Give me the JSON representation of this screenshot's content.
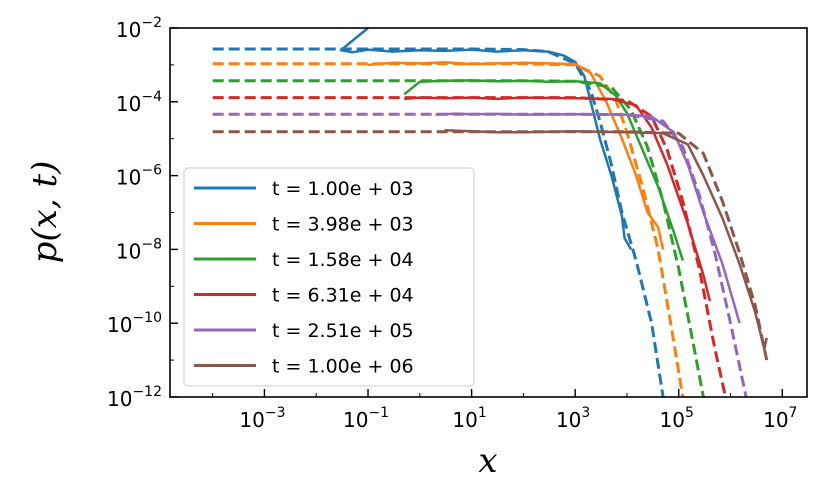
{
  "chart_data": {
    "type": "line",
    "xscale": "log",
    "yscale": "log",
    "xlabel": "x",
    "ylabel": "p(x, t)",
    "xlim": [
      1.5e-05,
      30000000.0
    ],
    "ylim": [
      1e-12,
      0.01
    ],
    "xticks": [
      {
        "base": "10",
        "exp": "−3",
        "value": 0.001
      },
      {
        "base": "10",
        "exp": "−1",
        "value": 0.1
      },
      {
        "base": "10",
        "exp": "1",
        "value": 10
      },
      {
        "base": "10",
        "exp": "3",
        "value": 1000
      },
      {
        "base": "10",
        "exp": "5",
        "value": 100000
      },
      {
        "base": "10",
        "exp": "7",
        "value": 10000000
      }
    ],
    "yticks": [
      {
        "base": "10",
        "exp": "−12",
        "value": 1e-12
      },
      {
        "base": "10",
        "exp": "−10",
        "value": 1e-10
      },
      {
        "base": "10",
        "exp": "−8",
        "value": 1e-08
      },
      {
        "base": "10",
        "exp": "−6",
        "value": 1e-06
      },
      {
        "base": "10",
        "exp": "−4",
        "value": 0.0001
      },
      {
        "base": "10",
        "exp": "−2",
        "value": 0.01
      }
    ],
    "grid": false,
    "legend_position": "lower-left",
    "legend_style": "solid",
    "series": [
      {
        "name": "t = 1.00e + 03",
        "color": "#1f77b4",
        "simulation": [
          [
            0.1,
            0.01
          ],
          [
            0.03,
            0.0025
          ],
          [
            0.05,
            0.0022
          ],
          [
            0.1,
            0.0026
          ],
          [
            0.3,
            0.0023
          ],
          [
            1,
            0.0025
          ],
          [
            3,
            0.0024
          ],
          [
            10,
            0.0026
          ],
          [
            30,
            0.0023
          ],
          [
            100,
            0.0025
          ],
          [
            300,
            0.0023
          ],
          [
            600,
            0.0018
          ],
          [
            1000,
            0.0012
          ],
          [
            1500,
            0.0005
          ],
          [
            2000,
            0.0001
          ],
          [
            3000,
            1e-05
          ],
          [
            5000,
            1e-06
          ],
          [
            8000,
            8e-08
          ],
          [
            9000,
            2e-08
          ],
          [
            12000,
            1e-08
          ]
        ],
        "theory": [
          [
            0.0001,
            0.0027
          ],
          [
            0.001,
            0.0027
          ],
          [
            0.01,
            0.0027
          ],
          [
            0.1,
            0.0027
          ],
          [
            1,
            0.0027
          ],
          [
            10,
            0.0027
          ],
          [
            100,
            0.0026
          ],
          [
            300,
            0.0023
          ],
          [
            1000,
            0.0011
          ],
          [
            2000,
            0.0002
          ],
          [
            3000,
            3e-05
          ],
          [
            5000,
            2e-06
          ],
          [
            8000,
            1e-07
          ],
          [
            15000,
            5e-09
          ],
          [
            30000,
            1e-10
          ],
          [
            50000,
            1e-12
          ]
        ]
      },
      {
        "name": "t = 3.98e + 03",
        "color": "#ff7f0e",
        "simulation": [
          [
            0.1,
            0.001
          ],
          [
            0.3,
            0.00115
          ],
          [
            1,
            0.0011
          ],
          [
            3,
            0.00118
          ],
          [
            10,
            0.00105
          ],
          [
            30,
            0.0011
          ],
          [
            100,
            0.00115
          ],
          [
            300,
            0.0011
          ],
          [
            1000,
            0.00105
          ],
          [
            2000,
            0.0006
          ],
          [
            4000,
            0.0001
          ],
          [
            8000,
            1e-05
          ],
          [
            15000,
            1e-06
          ],
          [
            25000,
            1e-07
          ],
          [
            40000,
            4e-08
          ],
          [
            50000,
            1e-08
          ]
        ],
        "theory": [
          [
            0.0001,
            0.00108
          ],
          [
            0.001,
            0.00108
          ],
          [
            0.01,
            0.00108
          ],
          [
            0.1,
            0.00108
          ],
          [
            1,
            0.00108
          ],
          [
            10,
            0.00108
          ],
          [
            100,
            0.00107
          ],
          [
            1000,
            0.001
          ],
          [
            3000,
            0.0005
          ],
          [
            6000,
            0.00012
          ],
          [
            10000,
            1.5e-05
          ],
          [
            20000,
            5e-07
          ],
          [
            40000,
            1e-08
          ],
          [
            70000,
            1e-10
          ],
          [
            120000,
            1e-12
          ]
        ]
      },
      {
        "name": "t = 1.58e + 04",
        "color": "#2ca02c",
        "simulation": [
          [
            0.5,
            0.00016
          ],
          [
            1,
            0.00035
          ],
          [
            3,
            0.00037
          ],
          [
            10,
            0.00038
          ],
          [
            30,
            0.00036
          ],
          [
            100,
            0.00037
          ],
          [
            300,
            0.00035
          ],
          [
            1000,
            0.00036
          ],
          [
            3000,
            0.00032
          ],
          [
            6000,
            0.00015
          ],
          [
            10000,
            5e-05
          ],
          [
            20000,
            5e-06
          ],
          [
            40000,
            5e-07
          ],
          [
            80000,
            3e-08
          ],
          [
            120000,
            5e-09
          ]
        ],
        "theory": [
          [
            0.0001,
            0.00037
          ],
          [
            0.001,
            0.00037
          ],
          [
            0.01,
            0.00037
          ],
          [
            0.1,
            0.00037
          ],
          [
            1,
            0.00037
          ],
          [
            10,
            0.00037
          ],
          [
            100,
            0.00037
          ],
          [
            1000,
            0.00036
          ],
          [
            5000,
            0.00025
          ],
          [
            12000,
            6e-05
          ],
          [
            25000,
            6e-06
          ],
          [
            50000,
            2e-07
          ],
          [
            100000,
            3e-09
          ],
          [
            200000,
            2e-11
          ],
          [
            300000,
            1e-12
          ]
        ]
      },
      {
        "name": "t = 6.31e + 04",
        "color": "#d62728",
        "simulation": [
          [
            0.5,
            0.00012
          ],
          [
            1,
            0.00013
          ],
          [
            3,
            0.000125
          ],
          [
            10,
            0.00013
          ],
          [
            30,
            0.00012
          ],
          [
            100,
            0.00013
          ],
          [
            1000,
            0.000125
          ],
          [
            5000,
            0.00012
          ],
          [
            15000,
            8e-05
          ],
          [
            30000,
            2e-05
          ],
          [
            60000,
            2e-06
          ],
          [
            150000,
            5e-08
          ],
          [
            300000,
            2e-09
          ],
          [
            400000,
            4e-10
          ]
        ],
        "theory": [
          [
            0.0001,
            0.00013
          ],
          [
            0.001,
            0.00013
          ],
          [
            0.01,
            0.00013
          ],
          [
            0.1,
            0.00013
          ],
          [
            1,
            0.00013
          ],
          [
            10,
            0.00013
          ],
          [
            100,
            0.00013
          ],
          [
            1000,
            0.00013
          ],
          [
            10000,
            0.00011
          ],
          [
            30000,
            4e-05
          ],
          [
            60000,
            5e-06
          ],
          [
            120000,
            2e-07
          ],
          [
            250000,
            3e-09
          ],
          [
            500000,
            2e-11
          ],
          [
            800000,
            1e-12
          ]
        ]
      },
      {
        "name": "t = 2.51e + 05",
        "color": "#9467bd",
        "simulation": [
          [
            2,
            4.5e-05
          ],
          [
            5,
            4.8e-05
          ],
          [
            10,
            4.6e-05
          ],
          [
            30,
            4.7e-05
          ],
          [
            100,
            4.5e-05
          ],
          [
            1000,
            4.6e-05
          ],
          [
            10000,
            4.5e-05
          ],
          [
            30000,
            4e-05
          ],
          [
            80000,
            1.5e-05
          ],
          [
            150000,
            2e-06
          ],
          [
            300000,
            1e-07
          ],
          [
            700000,
            4e-09
          ],
          [
            1500000,
            1e-10
          ]
        ],
        "theory": [
          [
            0.0001,
            4.6e-05
          ],
          [
            0.001,
            4.6e-05
          ],
          [
            0.01,
            4.6e-05
          ],
          [
            0.1,
            4.6e-05
          ],
          [
            1,
            4.6e-05
          ],
          [
            10,
            4.6e-05
          ],
          [
            100,
            4.6e-05
          ],
          [
            1000,
            4.6e-05
          ],
          [
            10000,
            4.5e-05
          ],
          [
            50000,
            3e-05
          ],
          [
            120000,
            6e-06
          ],
          [
            250000,
            3e-07
          ],
          [
            500000,
            8e-09
          ],
          [
            1000000,
            1e-10
          ],
          [
            2000000,
            1e-12
          ]
        ]
      },
      {
        "name": "t = 1.00e + 06",
        "color": "#8c564b",
        "simulation": [
          [
            3,
            1.7e-05
          ],
          [
            10,
            1.6e-05
          ],
          [
            30,
            1.5e-05
          ],
          [
            100,
            1.5e-05
          ],
          [
            1000,
            1.6e-05
          ],
          [
            10000,
            1.5e-05
          ],
          [
            50000,
            1.4e-05
          ],
          [
            150000,
            7e-06
          ],
          [
            300000,
            1e-06
          ],
          [
            700000,
            7e-08
          ],
          [
            1500000,
            4e-09
          ],
          [
            3000000,
            2e-10
          ],
          [
            4500000,
            2e-11
          ],
          [
            5000000,
            4e-11
          ]
        ],
        "theory": [
          [
            0.0001,
            1.55e-05
          ],
          [
            0.001,
            1.55e-05
          ],
          [
            0.01,
            1.55e-05
          ],
          [
            0.1,
            1.55e-05
          ],
          [
            1,
            1.55e-05
          ],
          [
            10,
            1.55e-05
          ],
          [
            100,
            1.55e-05
          ],
          [
            1000,
            1.55e-05
          ],
          [
            10000,
            1.55e-05
          ],
          [
            100000,
            1.4e-05
          ],
          [
            300000,
            4e-06
          ],
          [
            700000,
            2e-07
          ],
          [
            1500000,
            8e-09
          ],
          [
            3000000,
            3e-10
          ],
          [
            5000000,
            1e-11
          ]
        ]
      }
    ]
  }
}
